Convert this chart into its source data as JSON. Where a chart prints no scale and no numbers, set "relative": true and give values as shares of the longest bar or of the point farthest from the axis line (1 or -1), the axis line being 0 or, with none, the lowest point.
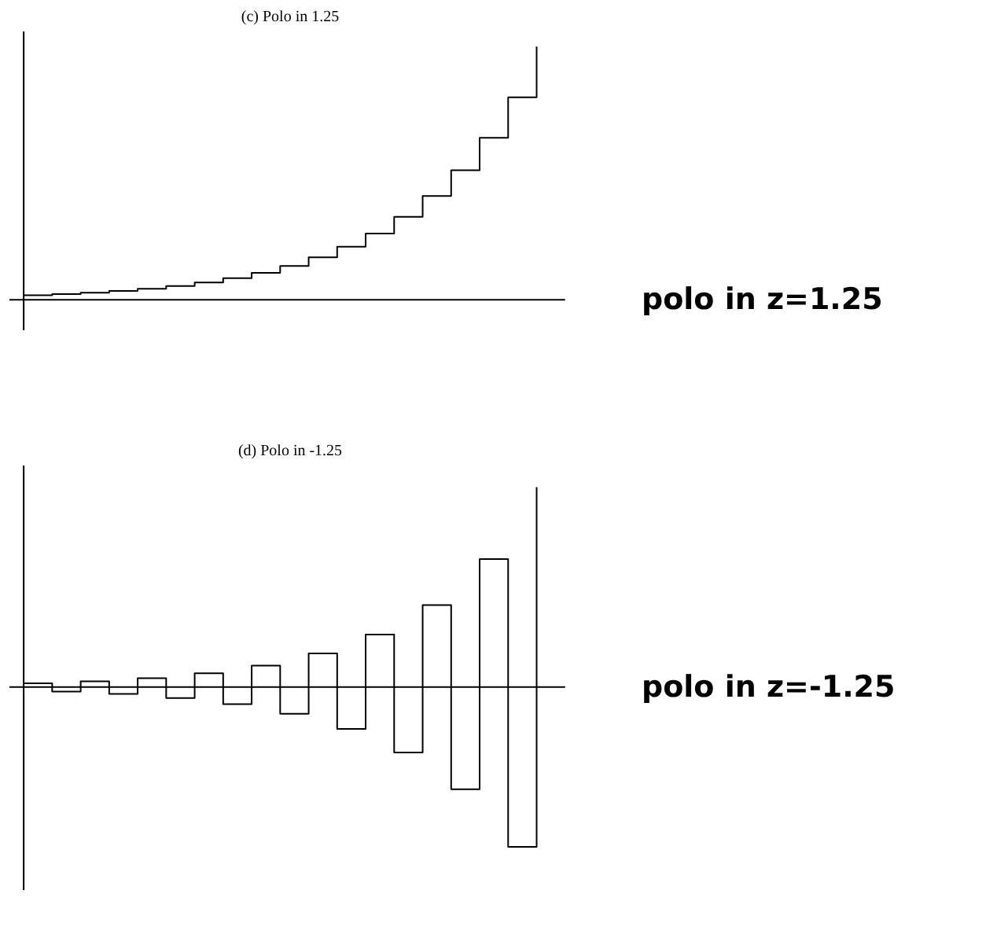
{
  "chart_data": [
    {
      "type": "step",
      "title": "(c) Polo in 1.25",
      "relative": true,
      "annotations": [
        "polo in z=1.25"
      ],
      "categories": [
        null,
        null,
        null,
        null,
        null,
        null,
        null,
        null,
        null,
        null,
        null,
        null,
        null,
        null,
        null,
        null,
        null,
        null,
        null
      ],
      "series": [
        {
          "color": "#000000",
          "values": [
            0.018,
            0.023,
            0.028,
            0.035,
            0.044,
            0.055,
            0.069,
            0.086,
            0.107,
            0.134,
            0.168,
            0.21,
            0.262,
            0.328,
            0.41,
            0.512,
            0.64,
            0.8,
            1.0
          ]
        }
      ]
    },
    {
      "type": "step",
      "title": "(d) Polo in -1.25",
      "relative": true,
      "annotations": [
        "polo in z=-1.25"
      ],
      "categories": [
        null,
        null,
        null,
        null,
        null,
        null,
        null,
        null,
        null,
        null,
        null,
        null,
        null,
        null,
        null,
        null,
        null,
        null,
        null
      ],
      "series": [
        {
          "color": "#000000",
          "values": [
            0.018,
            -0.023,
            0.028,
            -0.035,
            0.044,
            -0.055,
            0.069,
            -0.086,
            0.107,
            -0.134,
            0.168,
            -0.21,
            0.262,
            -0.328,
            0.41,
            -0.512,
            0.64,
            -0.8,
            1.0
          ]
        }
      ]
    }
  ]
}
